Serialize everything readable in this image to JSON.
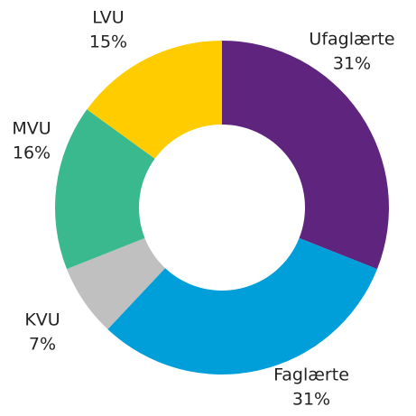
{
  "chart_data": {
    "type": "donut",
    "categories": [
      "Ufaglærte",
      "Faglærte",
      "KVU",
      "MVU",
      "LVU"
    ],
    "values": [
      31,
      31,
      7,
      16,
      15
    ],
    "value_labels": [
      "31%",
      "31%",
      "7%",
      "16%",
      "15%"
    ],
    "colors": [
      "#5f257e",
      "#009fda",
      "#c0c0c0",
      "#3ab98e",
      "#ffcc00"
    ]
  }
}
